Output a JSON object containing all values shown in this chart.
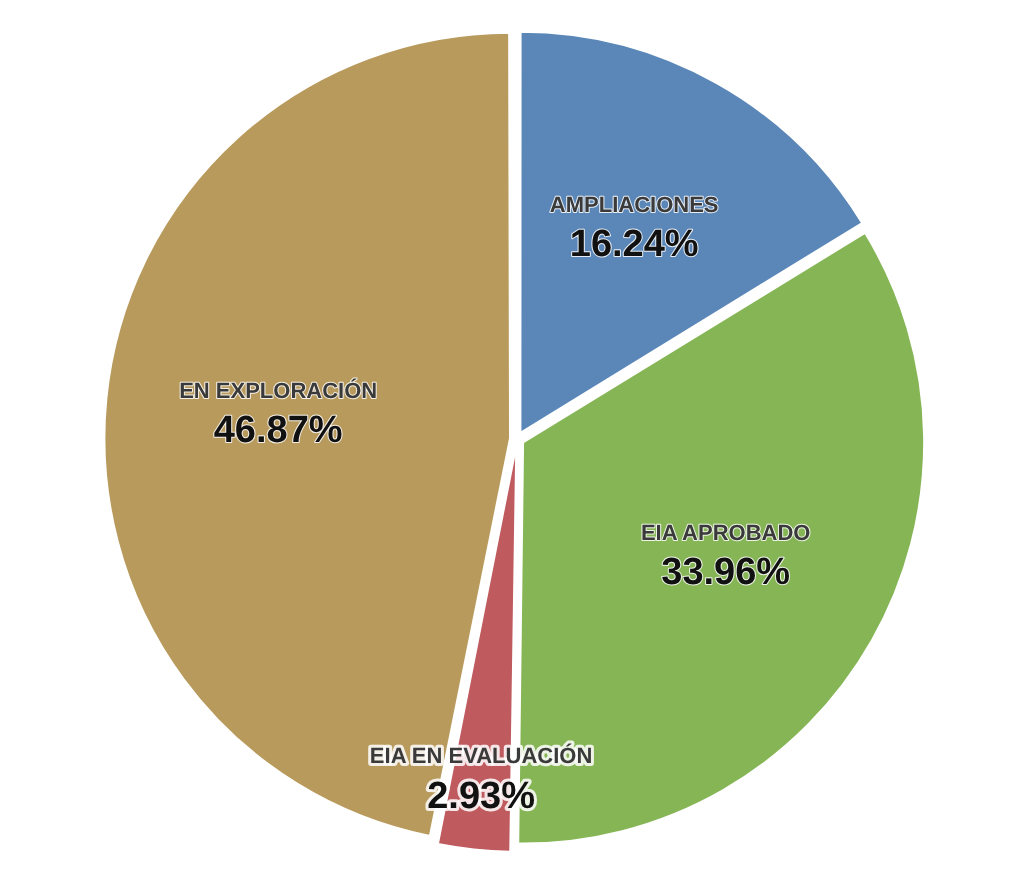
{
  "chart_data": {
    "type": "pie",
    "categories": [
      "AMPLIACIONES",
      "EIA APROBADO",
      "EIA EN EVALUACIÓN",
      "EN EXPLORACIÓN"
    ],
    "values": [
      16.24,
      33.96,
      2.93,
      46.87
    ],
    "colors": [
      "#5b87b8",
      "#86b556",
      "#bf5a5e",
      "#b89a5c"
    ],
    "value_labels": [
      "16.24%",
      "33.96%",
      "2.93%",
      "46.87%"
    ],
    "legend": false
  }
}
